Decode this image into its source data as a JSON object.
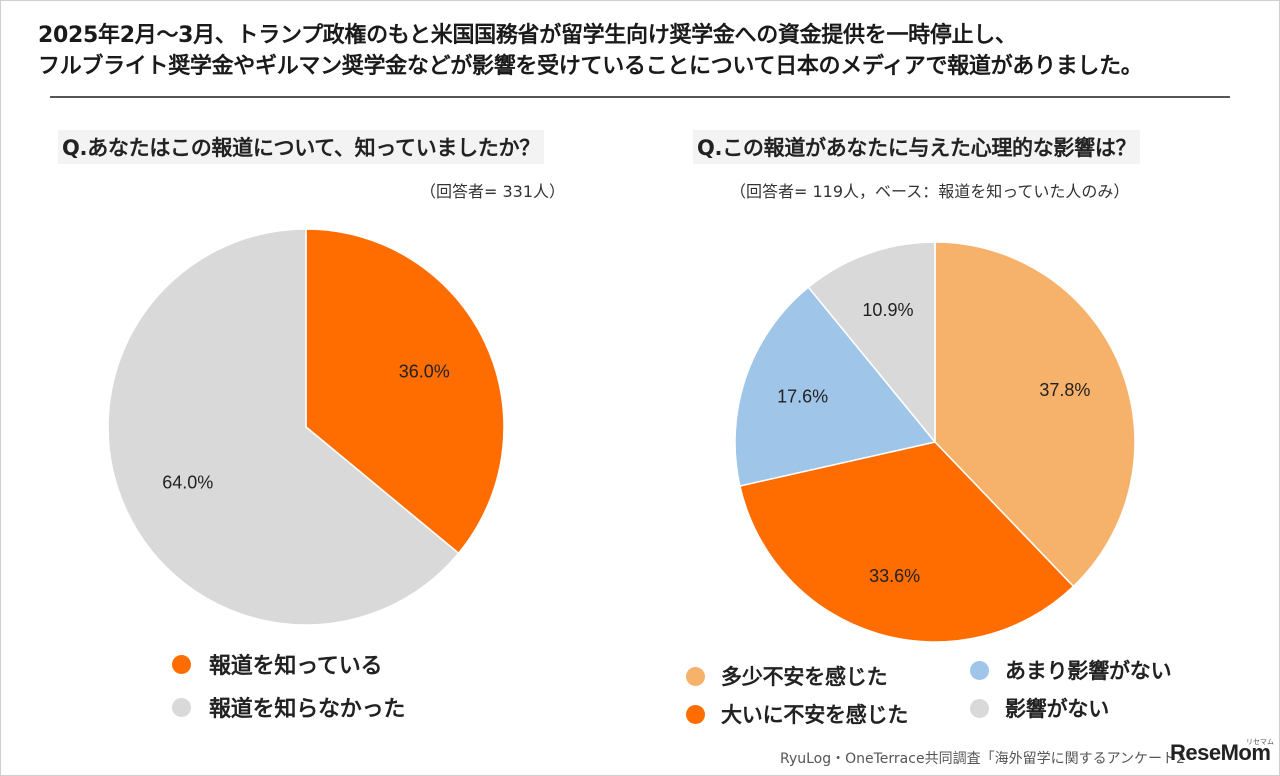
{
  "header": {
    "line1": "2025年2月〜3月、トランプ政権のもと米国国務省が留学生向け奨学金への資金提供を一時停止し、",
    "line2": "フルブライト奨学金やギルマン奨学金などが影響を受けていることについて日本のメディアで報道がありました。"
  },
  "source": "RyuLog・OneTerrace共同調査「海外留学に関するアンケート2",
  "logo": {
    "text": "ReseMom",
    "sub": "リセマム"
  },
  "chart_data": [
    {
      "type": "pie",
      "title": "Q.あなたはこの報道について、知っていましたか？",
      "subtitle": "（回答者= 331人）",
      "slices": [
        {
          "name": "報道を知っている",
          "value": 36.0,
          "label": "36.0%",
          "color": "#ff6d00"
        },
        {
          "name": "報道を知らなかった",
          "value": 64.0,
          "label": "64.0%",
          "color": "#d9d9d9"
        }
      ],
      "legend_placement": "bottom"
    },
    {
      "type": "pie",
      "title": "Q.この報道があなたに与えた心理的な影響は？",
      "subtitle": "（回答者= 119人，ベース：報道を知っていた人のみ）",
      "slices": [
        {
          "name": "多少不安を感じた",
          "value": 37.8,
          "label": "37.8%",
          "color": "#f6b26b"
        },
        {
          "name": "大いに不安を感じた",
          "value": 33.6,
          "label": "33.6%",
          "color": "#ff6d00"
        },
        {
          "name": "あまり影響がない",
          "value": 17.6,
          "label": "17.6%",
          "color": "#9fc5e8"
        },
        {
          "name": "影響がない",
          "value": 10.9,
          "label": "10.9%",
          "color": "#d9d9d9"
        }
      ],
      "legend_placement": "bottom"
    }
  ]
}
